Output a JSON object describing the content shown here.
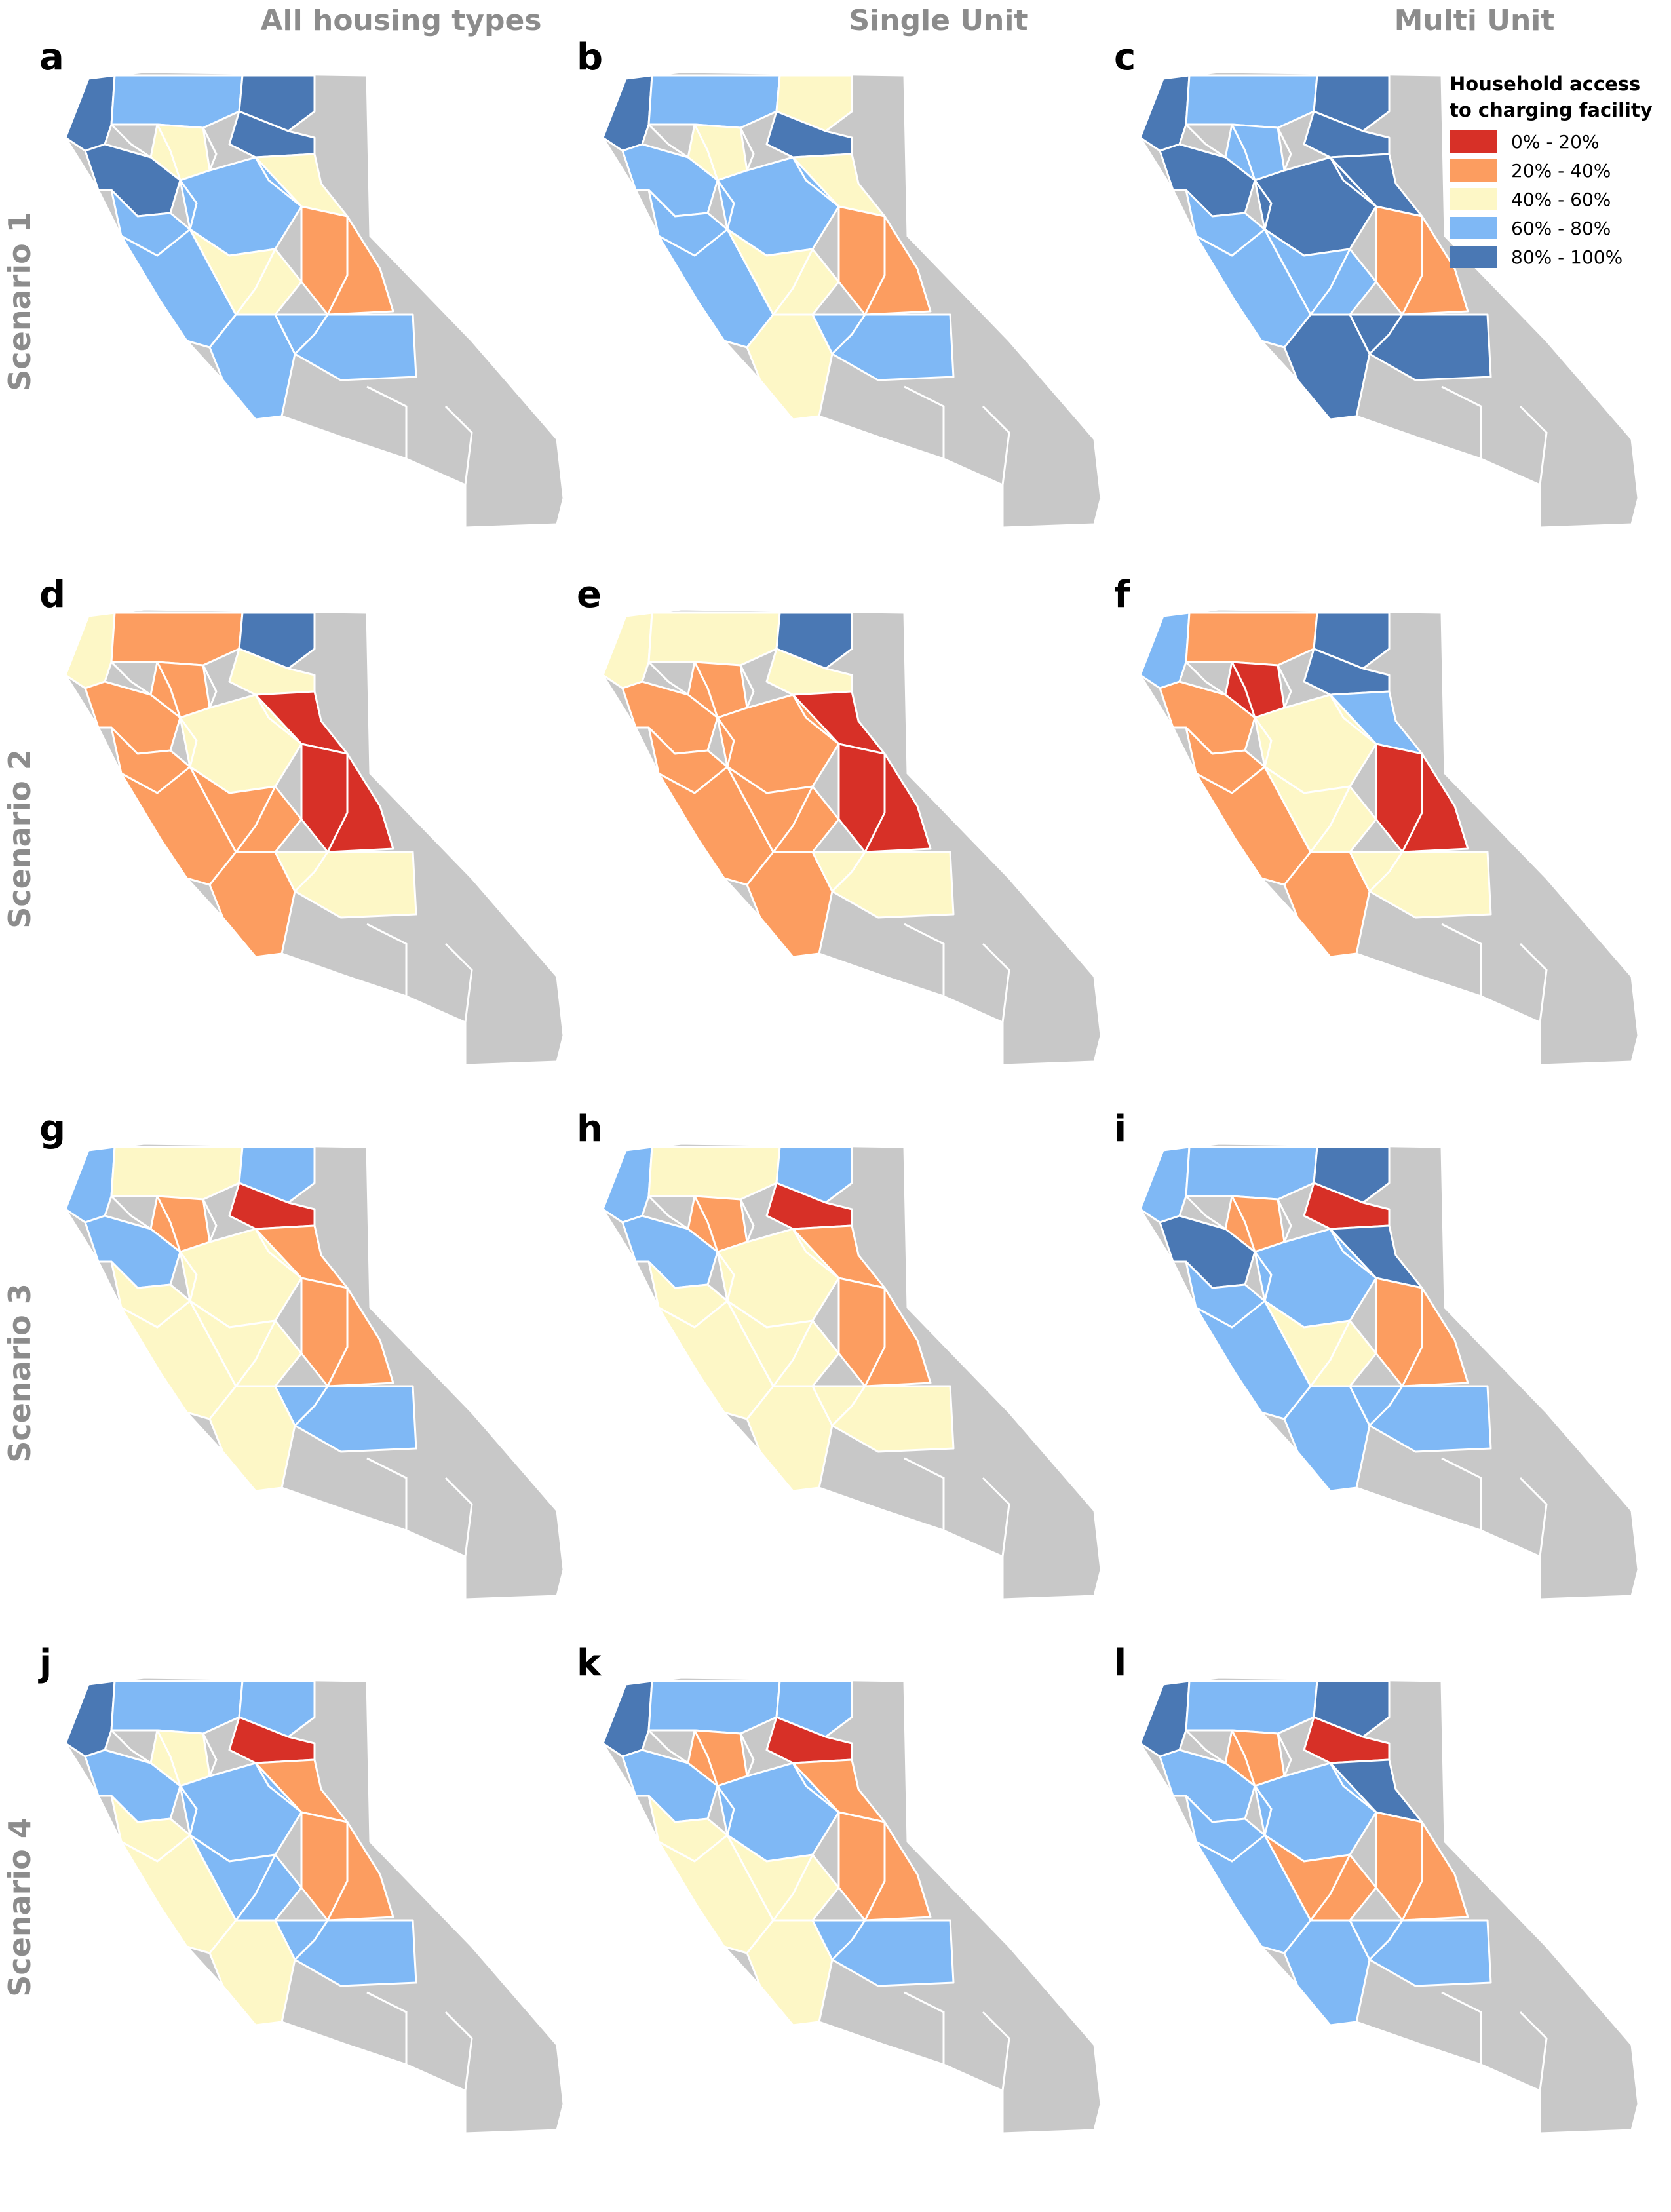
{
  "columns": [
    "All housing types",
    "Single Unit",
    "Multi Unit"
  ],
  "rows": [
    "Scenario 1",
    "Scenario 2",
    "Scenario 3",
    "Scenario 4"
  ],
  "panel_letters": [
    "a",
    "b",
    "c",
    "d",
    "e",
    "f",
    "g",
    "h",
    "i",
    "j",
    "k",
    "l"
  ],
  "legend": {
    "title_line1": "Household access",
    "title_line2": "to charging facility",
    "items": [
      {
        "label": "0% - 20%",
        "color": "#d73027"
      },
      {
        "label": "20% - 40%",
        "color": "#fc9d60"
      },
      {
        "label": "40% - 60%",
        "color": "#fdf7c6"
      },
      {
        "label": "60% - 80%",
        "color": "#7fb8f5"
      },
      {
        "label": "80% - 100%",
        "color": "#4a78b4"
      }
    ]
  },
  "no_data_color": "#c8c8c8",
  "panels": [
    {
      "letter": "a",
      "regions": {
        "north_coast": 4,
        "north_inner": 3,
        "northeast": 4,
        "sac_valley": 2,
        "sierra_north": 4,
        "bay_area": 4,
        "central_valley": 3,
        "sierra_central": 2,
        "central_coast": 3,
        "san_joaquin_south": 2,
        "inyo": 1,
        "socal_coast": 3,
        "la_kern": 3
      }
    },
    {
      "letter": "b",
      "regions": {
        "north_coast": 4,
        "north_inner": 3,
        "northeast": 2,
        "sac_valley": 2,
        "sierra_north": 4,
        "bay_area": 3,
        "central_valley": 3,
        "sierra_central": 2,
        "central_coast": 3,
        "san_joaquin_south": 2,
        "inyo": 1,
        "socal_coast": 2,
        "la_kern": 3
      }
    },
    {
      "letter": "c",
      "regions": {
        "north_coast": 4,
        "north_inner": 3,
        "northeast": 4,
        "sac_valley": 3,
        "sierra_north": 4,
        "bay_area": 4,
        "central_valley": 4,
        "sierra_central": 4,
        "central_coast": 3,
        "san_joaquin_south": 3,
        "inyo": 1,
        "socal_coast": 4,
        "la_kern": 4
      }
    },
    {
      "letter": "d",
      "regions": {
        "north_coast": 2,
        "north_inner": 1,
        "northeast": 4,
        "sac_valley": 1,
        "sierra_north": 2,
        "bay_area": 1,
        "central_valley": 2,
        "sierra_central": 0,
        "central_coast": 1,
        "san_joaquin_south": 1,
        "inyo": 0,
        "socal_coast": 1,
        "la_kern": 2
      }
    },
    {
      "letter": "e",
      "regions": {
        "north_coast": 2,
        "north_inner": 2,
        "northeast": 4,
        "sac_valley": 1,
        "sierra_north": 2,
        "bay_area": 1,
        "central_valley": 1,
        "sierra_central": 0,
        "central_coast": 1,
        "san_joaquin_south": 1,
        "inyo": 0,
        "socal_coast": 1,
        "la_kern": 2
      }
    },
    {
      "letter": "f",
      "regions": {
        "north_coast": 3,
        "north_inner": 1,
        "northeast": 4,
        "sac_valley": 0,
        "sierra_north": 4,
        "bay_area": 1,
        "central_valley": 2,
        "sierra_central": 3,
        "central_coast": 1,
        "san_joaquin_south": 2,
        "inyo": 0,
        "socal_coast": 1,
        "la_kern": 2
      }
    },
    {
      "letter": "g",
      "regions": {
        "north_coast": 3,
        "north_inner": 2,
        "northeast": 3,
        "sac_valley": 1,
        "sierra_north": 0,
        "bay_area": 3,
        "central_valley": 2,
        "sierra_central": 1,
        "central_coast": 2,
        "san_joaquin_south": 2,
        "inyo": 1,
        "socal_coast": 2,
        "la_kern": 3
      }
    },
    {
      "letter": "h",
      "regions": {
        "north_coast": 3,
        "north_inner": 2,
        "northeast": 3,
        "sac_valley": 1,
        "sierra_north": 0,
        "bay_area": 3,
        "central_valley": 2,
        "sierra_central": 1,
        "central_coast": 2,
        "san_joaquin_south": 2,
        "inyo": 1,
        "socal_coast": 2,
        "la_kern": 2
      }
    },
    {
      "letter": "i",
      "regions": {
        "north_coast": 3,
        "north_inner": 3,
        "northeast": 4,
        "sac_valley": 1,
        "sierra_north": 0,
        "bay_area": 4,
        "central_valley": 3,
        "sierra_central": 4,
        "central_coast": 3,
        "san_joaquin_south": 2,
        "inyo": 1,
        "socal_coast": 3,
        "la_kern": 3
      }
    },
    {
      "letter": "j",
      "regions": {
        "north_coast": 4,
        "north_inner": 3,
        "northeast": 3,
        "sac_valley": 2,
        "sierra_north": 0,
        "bay_area": 3,
        "central_valley": 3,
        "sierra_central": 1,
        "central_coast": 2,
        "san_joaquin_south": 3,
        "inyo": 1,
        "socal_coast": 2,
        "la_kern": 3
      }
    },
    {
      "letter": "k",
      "regions": {
        "north_coast": 4,
        "north_inner": 3,
        "northeast": 3,
        "sac_valley": 1,
        "sierra_north": 0,
        "bay_area": 3,
        "central_valley": 3,
        "sierra_central": 1,
        "central_coast": 2,
        "san_joaquin_south": 2,
        "inyo": 1,
        "socal_coast": 2,
        "la_kern": 3
      }
    },
    {
      "letter": "l",
      "regions": {
        "north_coast": 4,
        "north_inner": 3,
        "northeast": 4,
        "sac_valley": 1,
        "sierra_north": 0,
        "bay_area": 3,
        "central_valley": 3,
        "sierra_central": 4,
        "central_coast": 3,
        "san_joaquin_south": 1,
        "inyo": 1,
        "socal_coast": 3,
        "la_kern": 3
      }
    }
  ]
}
